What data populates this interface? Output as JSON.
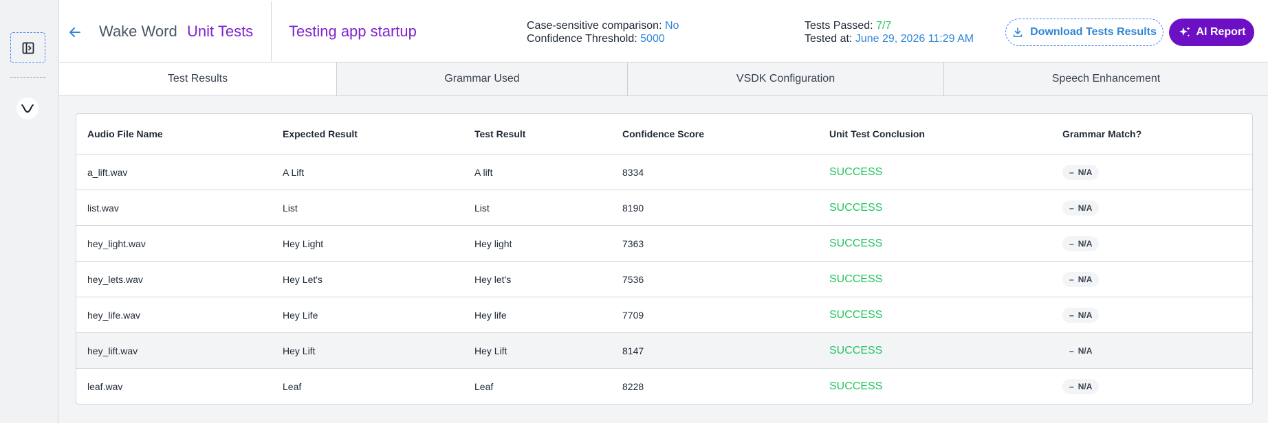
{
  "header": {
    "breadcrumb_main": "Wake Word",
    "breadcrumb_sub": "Unit Tests",
    "page_title": "Testing app startup",
    "case_sensitive_label": "Case-sensitive comparison:",
    "case_sensitive_value": "No",
    "confidence_threshold_label": "Confidence Threshold:",
    "confidence_threshold_value": "5000",
    "tests_passed_label": "Tests Passed:",
    "tests_passed_value": "7/7",
    "tested_at_label": "Tested at:",
    "tested_at_value": "June 29, 2026 11:29 AM",
    "download_label": "Download Tests Results",
    "ai_report_label": "AI Report"
  },
  "tabs": [
    {
      "label": "Test Results"
    },
    {
      "label": "Grammar Used"
    },
    {
      "label": "VSDK Configuration"
    },
    {
      "label": "Speech Enhancement"
    }
  ],
  "table": {
    "columns": [
      "Audio File Name",
      "Expected Result",
      "Test Result",
      "Confidence Score",
      "Unit Test Conclusion",
      "Grammar Match?"
    ],
    "rows": [
      {
        "file": "a_lift.wav",
        "expected": "A Lift",
        "result": "A lift",
        "score": "8334",
        "conclusion": "SUCCESS",
        "grammar": "N/A"
      },
      {
        "file": "list.wav",
        "expected": "List",
        "result": "List",
        "score": "8190",
        "conclusion": "SUCCESS",
        "grammar": "N/A"
      },
      {
        "file": "hey_light.wav",
        "expected": "Hey Light",
        "result": "Hey light",
        "score": "7363",
        "conclusion": "SUCCESS",
        "grammar": "N/A"
      },
      {
        "file": "hey_lets.wav",
        "expected": "Hey Let's",
        "result": "Hey let's",
        "score": "7536",
        "conclusion": "SUCCESS",
        "grammar": "N/A"
      },
      {
        "file": "hey_life.wav",
        "expected": "Hey Life",
        "result": "Hey life",
        "score": "7709",
        "conclusion": "SUCCESS",
        "grammar": "N/A"
      },
      {
        "file": "hey_lift.wav",
        "expected": "Hey Lift",
        "result": "Hey Lift",
        "score": "8147",
        "conclusion": "SUCCESS",
        "grammar": "N/A"
      },
      {
        "file": "leaf.wav",
        "expected": "Leaf",
        "result": "Leaf",
        "score": "8228",
        "conclusion": "SUCCESS",
        "grammar": "N/A"
      }
    ]
  },
  "icons": {
    "sidebar_toggle": "sidebar-toggle-icon",
    "logo": "vsdk-logo-icon",
    "back": "arrow-left-icon",
    "download": "download-icon",
    "sparkle": "sparkle-icon"
  },
  "colors": {
    "accent_purple": "#7e22ce",
    "ai_button": "#6d0fc4",
    "link_blue": "#2f86d6",
    "success_green": "#22c55e"
  }
}
